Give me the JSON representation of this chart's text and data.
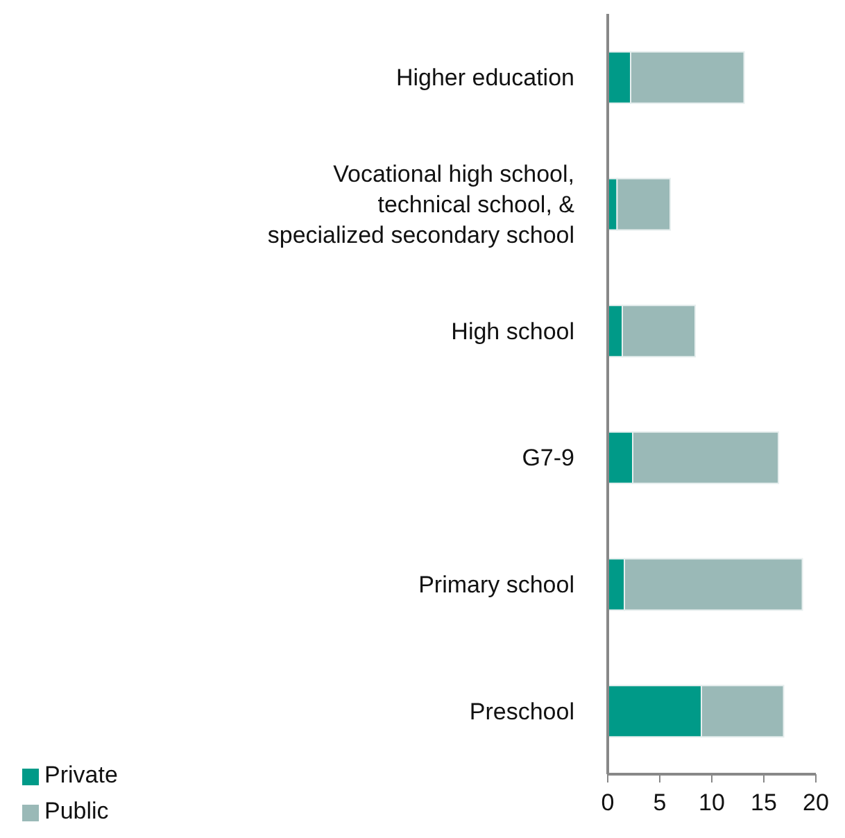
{
  "chart_data": {
    "type": "bar",
    "orientation": "horizontal",
    "stacked": true,
    "categories": [
      "Higher education",
      "Vocational high school, technical school, & specialized secondary school",
      "High school",
      "G7-9",
      "Primary school",
      "Preschool"
    ],
    "series": [
      {
        "name": "Private",
        "color": "#009a88",
        "values": [
          2.2,
          0.9,
          1.4,
          2.4,
          1.6,
          9.0
        ]
      },
      {
        "name": "Public",
        "color": "#9ab9b7",
        "values": [
          10.9,
          5.1,
          7.0,
          14.0,
          17.1,
          7.9
        ]
      }
    ],
    "xlim": [
      0,
      20
    ],
    "xticks": [
      0,
      5,
      10,
      15,
      20
    ],
    "grid": false,
    "legend": "bottom left"
  }
}
